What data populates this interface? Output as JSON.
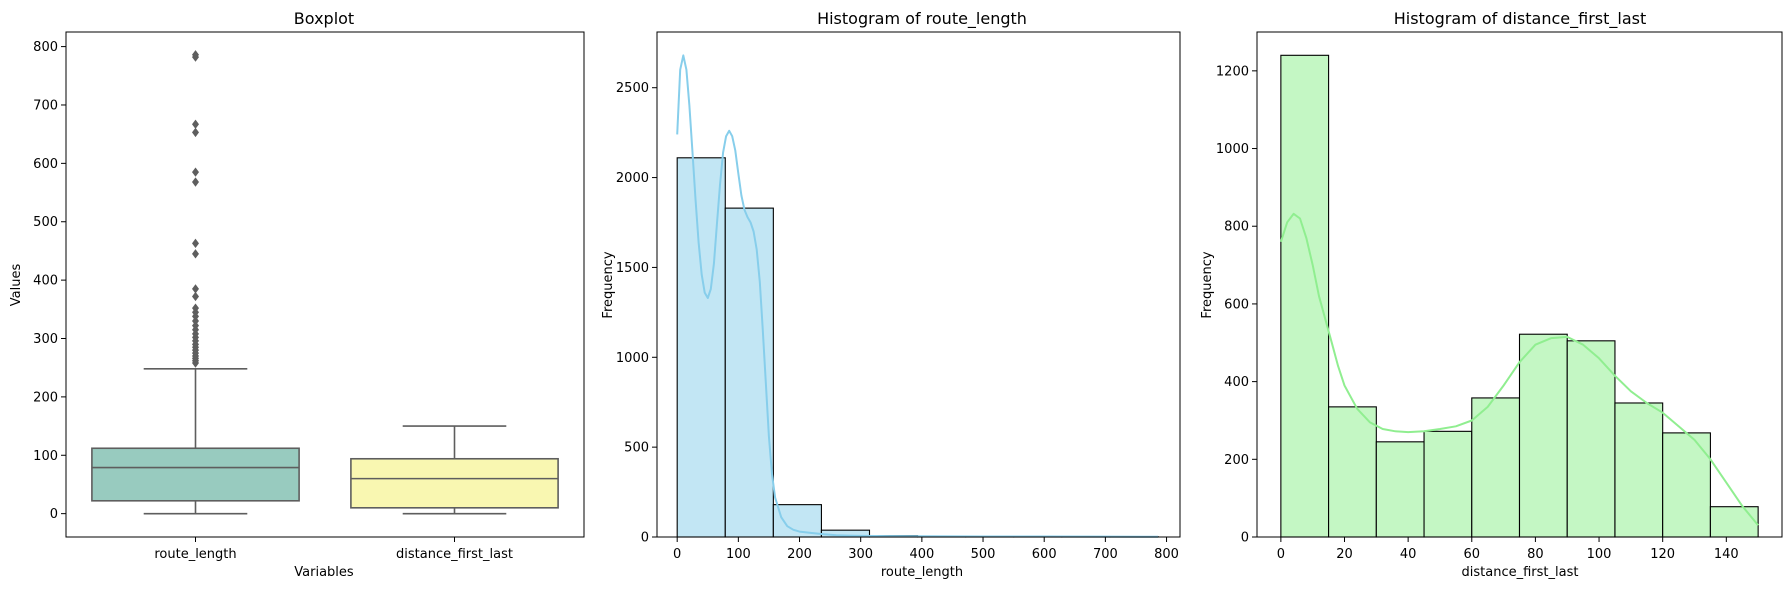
{
  "chart_data": [
    {
      "type": "box",
      "title": "Boxplot",
      "xlabel": "Variables",
      "ylabel": "Values",
      "categories": [
        "route_length",
        "distance_first_last"
      ],
      "ylim": [
        -40,
        825
      ],
      "yticks": [
        0,
        100,
        200,
        300,
        400,
        500,
        600,
        700,
        800
      ],
      "boxes": [
        {
          "category": "route_length",
          "color": "#98cbbf",
          "whisker_low": 0,
          "q1": 22,
          "median": 79,
          "q3": 112,
          "whisker_high": 248,
          "outliers": [
            258,
            262,
            266,
            270,
            275,
            280,
            285,
            290,
            296,
            302,
            308,
            315,
            322,
            330,
            338,
            345,
            352,
            372,
            385,
            445,
            463,
            568,
            585,
            653,
            667,
            782,
            786
          ]
        },
        {
          "category": "distance_first_last",
          "color": "#f9f7b1",
          "whisker_low": 0,
          "q1": 10,
          "median": 60,
          "q3": 94,
          "whisker_high": 150,
          "outliers": []
        }
      ]
    },
    {
      "type": "histogram",
      "title": "Histogram of route_length",
      "xlabel": "route_length",
      "ylabel": "Frequency",
      "xlim": [
        -33,
        822
      ],
      "ylim": [
        0,
        2810
      ],
      "xticks": [
        0,
        100,
        200,
        300,
        400,
        500,
        600,
        700,
        800
      ],
      "yticks": [
        0,
        500,
        1000,
        1500,
        2000,
        2500
      ],
      "bin_edges": [
        0,
        78.6,
        157.2,
        235.8,
        314.4,
        393,
        471.6,
        550.2,
        628.8,
        707.4,
        786
      ],
      "counts": [
        2110,
        1830,
        180,
        38,
        8,
        3,
        1,
        2,
        1,
        2
      ],
      "bar_color": "#c2e6f4",
      "kde_color": "#87ceeb",
      "kde": {
        "x": [
          0,
          5,
          10,
          15,
          20,
          25,
          30,
          35,
          40,
          45,
          50,
          55,
          60,
          65,
          70,
          75,
          80,
          85,
          90,
          95,
          100,
          105,
          110,
          115,
          120,
          125,
          130,
          135,
          140,
          145,
          150,
          155,
          160,
          170,
          180,
          190,
          200,
          220,
          240,
          260,
          280,
          300,
          350,
          400,
          500,
          600,
          700,
          786
        ],
        "y": [
          2240,
          2600,
          2680,
          2600,
          2400,
          2140,
          1880,
          1640,
          1460,
          1360,
          1330,
          1380,
          1520,
          1740,
          1960,
          2140,
          2230,
          2260,
          2230,
          2150,
          2020,
          1900,
          1820,
          1780,
          1750,
          1700,
          1600,
          1420,
          1150,
          850,
          560,
          350,
          220,
          110,
          60,
          40,
          30,
          22,
          15,
          10,
          8,
          6,
          5,
          4,
          3,
          3,
          2,
          1
        ]
      }
    },
    {
      "type": "histogram",
      "title": "Histogram of distance_first_last",
      "xlabel": "distance_first_last",
      "ylabel": "Frequency",
      "xlim": [
        -7.5,
        157.5
      ],
      "ylim": [
        0,
        1300
      ],
      "xticks": [
        0,
        20,
        40,
        60,
        80,
        100,
        120,
        140
      ],
      "yticks": [
        0,
        200,
        400,
        600,
        800,
        1000,
        1200
      ],
      "bin_edges": [
        0,
        15,
        30,
        45,
        60,
        75,
        90,
        105,
        120,
        135,
        150
      ],
      "counts": [
        1240,
        335,
        245,
        272,
        358,
        522,
        505,
        345,
        268,
        78
      ],
      "bar_color": "#c4f7c4",
      "kde_color": "#90ee90",
      "kde": {
        "x": [
          0,
          2,
          4,
          6,
          8,
          10,
          12,
          14,
          16,
          18,
          20,
          24,
          28,
          32,
          36,
          40,
          45,
          50,
          55,
          60,
          65,
          70,
          75,
          80,
          85,
          90,
          95,
          100,
          105,
          110,
          115,
          120,
          125,
          130,
          135,
          140,
          145,
          150
        ],
        "y": [
          760,
          810,
          832,
          820,
          770,
          700,
          620,
          560,
          500,
          440,
          390,
          330,
          295,
          278,
          272,
          270,
          272,
          278,
          285,
          300,
          335,
          390,
          450,
          495,
          512,
          515,
          495,
          460,
          415,
          375,
          345,
          320,
          285,
          250,
          200,
          140,
          80,
          30
        ]
      }
    }
  ]
}
